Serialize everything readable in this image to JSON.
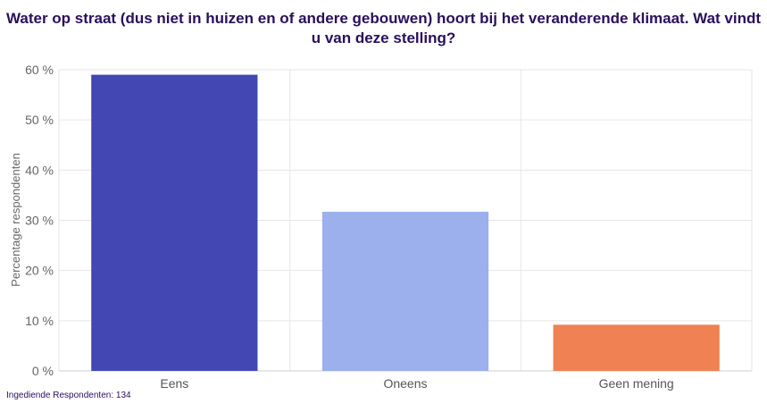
{
  "chart_data": {
    "type": "bar",
    "title": "Water op straat (dus niet in huizen en of andere gebouwen) hoort bij het veranderende klimaat. Wat vindt u van deze stelling?",
    "xlabel": "",
    "ylabel": "Percentage respondenten",
    "categories": [
      "Eens",
      "Oneens",
      "Geen mening"
    ],
    "values": [
      59.0,
      31.7,
      9.2
    ],
    "colors": [
      "#4347b3",
      "#9bb0ec",
      "#ef8152"
    ],
    "ylim": [
      0,
      60
    ],
    "yticks": [
      0,
      10,
      20,
      30,
      40,
      50,
      60
    ],
    "ytick_labels": [
      "0 %",
      "10 %",
      "20 %",
      "30 %",
      "40 %",
      "50 %",
      "60 %"
    ],
    "grid": true,
    "legend": "none"
  },
  "footer": {
    "text": "Ingediende Respondenten: 134"
  }
}
